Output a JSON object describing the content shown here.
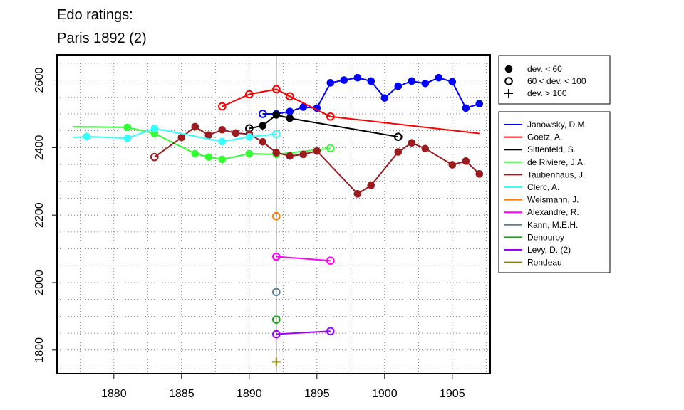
{
  "chart_data": {
    "type": "line",
    "title_lines": [
      "Edo ratings:",
      "Paris 1892 (2)"
    ],
    "xlabel": "",
    "ylabel": "",
    "xlim": [
      1875.8,
      1907.8
    ],
    "ylim": [
      1730,
      2675
    ],
    "x_ticks": [
      1880,
      1885,
      1890,
      1895,
      1900,
      1905
    ],
    "y_ticks": [
      1800,
      2000,
      2200,
      2400,
      2600
    ],
    "grid": true,
    "event_year": 1892,
    "marker_legend": {
      "position": "top-right",
      "items": [
        {
          "symbol": "filled",
          "label": "dev. < 60"
        },
        {
          "symbol": "open",
          "label": "60 < dev. < 100"
        },
        {
          "symbol": "plus",
          "label": "dev. > 100"
        }
      ]
    },
    "series_legend_position": "right",
    "series": [
      {
        "name": "Janowsky, D.M.",
        "color": "#0000ff",
        "x": [
          1891,
          1892,
          1893,
          1894,
          1895,
          1896,
          1897,
          1898,
          1899,
          1900,
          1901,
          1902,
          1903,
          1904,
          1905,
          1906,
          1907
        ],
        "y": [
          2500,
          2500,
          2507,
          2520,
          2517,
          2592,
          2600,
          2607,
          2597,
          2547,
          2582,
          2597,
          2590,
          2607,
          2595,
          2517,
          2530
        ],
        "markers": [
          "open",
          "filled",
          "filled",
          "filled",
          "filled",
          "filled",
          "filled",
          "filled",
          "filled",
          "filled",
          "filled",
          "filled",
          "filled",
          "filled",
          "filled",
          "filled",
          "filled"
        ]
      },
      {
        "name": "Goetz, A.",
        "color": "#ff0000",
        "x": [
          1888,
          1890,
          1892,
          1893,
          1896,
          1907
        ],
        "y": [
          2522,
          2558,
          2573,
          2552,
          2492,
          2442
        ],
        "markers": [
          "open",
          "open",
          "open",
          "open",
          "open",
          "none"
        ]
      },
      {
        "name": "Sittenfeld, S.",
        "color": "#000000",
        "x": [
          1890,
          1891,
          1892,
          1893,
          1901
        ],
        "y": [
          2457,
          2465,
          2497,
          2487,
          2432
        ],
        "markers": [
          "open",
          "filled",
          "filled",
          "filled",
          "open"
        ]
      },
      {
        "name": "de Riviere, J.A.",
        "color": "#33ff33",
        "x": [
          1877,
          1881,
          1883,
          1886,
          1887,
          1888,
          1890,
          1892,
          1896
        ],
        "y": [
          2462,
          2460,
          2442,
          2382,
          2372,
          2365,
          2382,
          2380,
          2398
        ],
        "markers": [
          "none",
          "filled",
          "filled",
          "filled",
          "filled",
          "filled",
          "filled",
          "filled",
          "open"
        ]
      },
      {
        "name": "Taubenhaus, J.",
        "color": "#9b1b1f",
        "x": [
          1883,
          1885,
          1886,
          1887,
          1888,
          1889,
          1890,
          1891,
          1892,
          1893,
          1894,
          1895,
          1898,
          1899,
          1901,
          1902,
          1903,
          1905,
          1906,
          1907
        ],
        "y": [
          2372,
          2430,
          2462,
          2437,
          2453,
          2443,
          2440,
          2417,
          2385,
          2375,
          2380,
          2390,
          2263,
          2288,
          2387,
          2414,
          2397,
          2349,
          2360,
          2322
        ],
        "markers": [
          "open",
          "filled",
          "filled",
          "filled",
          "filled",
          "filled",
          "filled",
          "filled",
          "filled",
          "filled",
          "filled",
          "filled",
          "filled",
          "filled",
          "filled",
          "filled",
          "filled",
          "filled",
          "filled",
          "filled"
        ]
      },
      {
        "name": "Clerc, A.",
        "color": "#33ffff",
        "x": [
          1877,
          1878,
          1881,
          1883,
          1888,
          1890,
          1892
        ],
        "y": [
          2430,
          2433,
          2428,
          2457,
          2418,
          2432,
          2440
        ],
        "markers": [
          "none",
          "filled",
          "filled",
          "filled",
          "filled",
          "filled",
          "open"
        ]
      },
      {
        "name": "Weismann, J.",
        "color": "#ff7f00",
        "x": [
          1892
        ],
        "y": [
          2197
        ],
        "markers": [
          "open"
        ]
      },
      {
        "name": "Alexandre, R.",
        "color": "#ff00ff",
        "x": [
          1892,
          1896
        ],
        "y": [
          2077,
          2065
        ],
        "markers": [
          "open",
          "open"
        ]
      },
      {
        "name": "Kann, M.E.H.",
        "color": "#5f7f8f",
        "x": [
          1892
        ],
        "y": [
          1972
        ],
        "markers": [
          "open"
        ]
      },
      {
        "name": "Denouroy",
        "color": "#1aa31a",
        "x": [
          1892
        ],
        "y": [
          1890
        ],
        "markers": [
          "open"
        ]
      },
      {
        "name": "Levy, D. (2)",
        "color": "#9b00ff",
        "x": [
          1892,
          1896
        ],
        "y": [
          1847,
          1856
        ],
        "markers": [
          "open",
          "open"
        ]
      },
      {
        "name": "Rondeau",
        "color": "#8b7d00",
        "x": [
          1892
        ],
        "y": [
          1765
        ],
        "markers": [
          "plus"
        ]
      }
    ]
  }
}
